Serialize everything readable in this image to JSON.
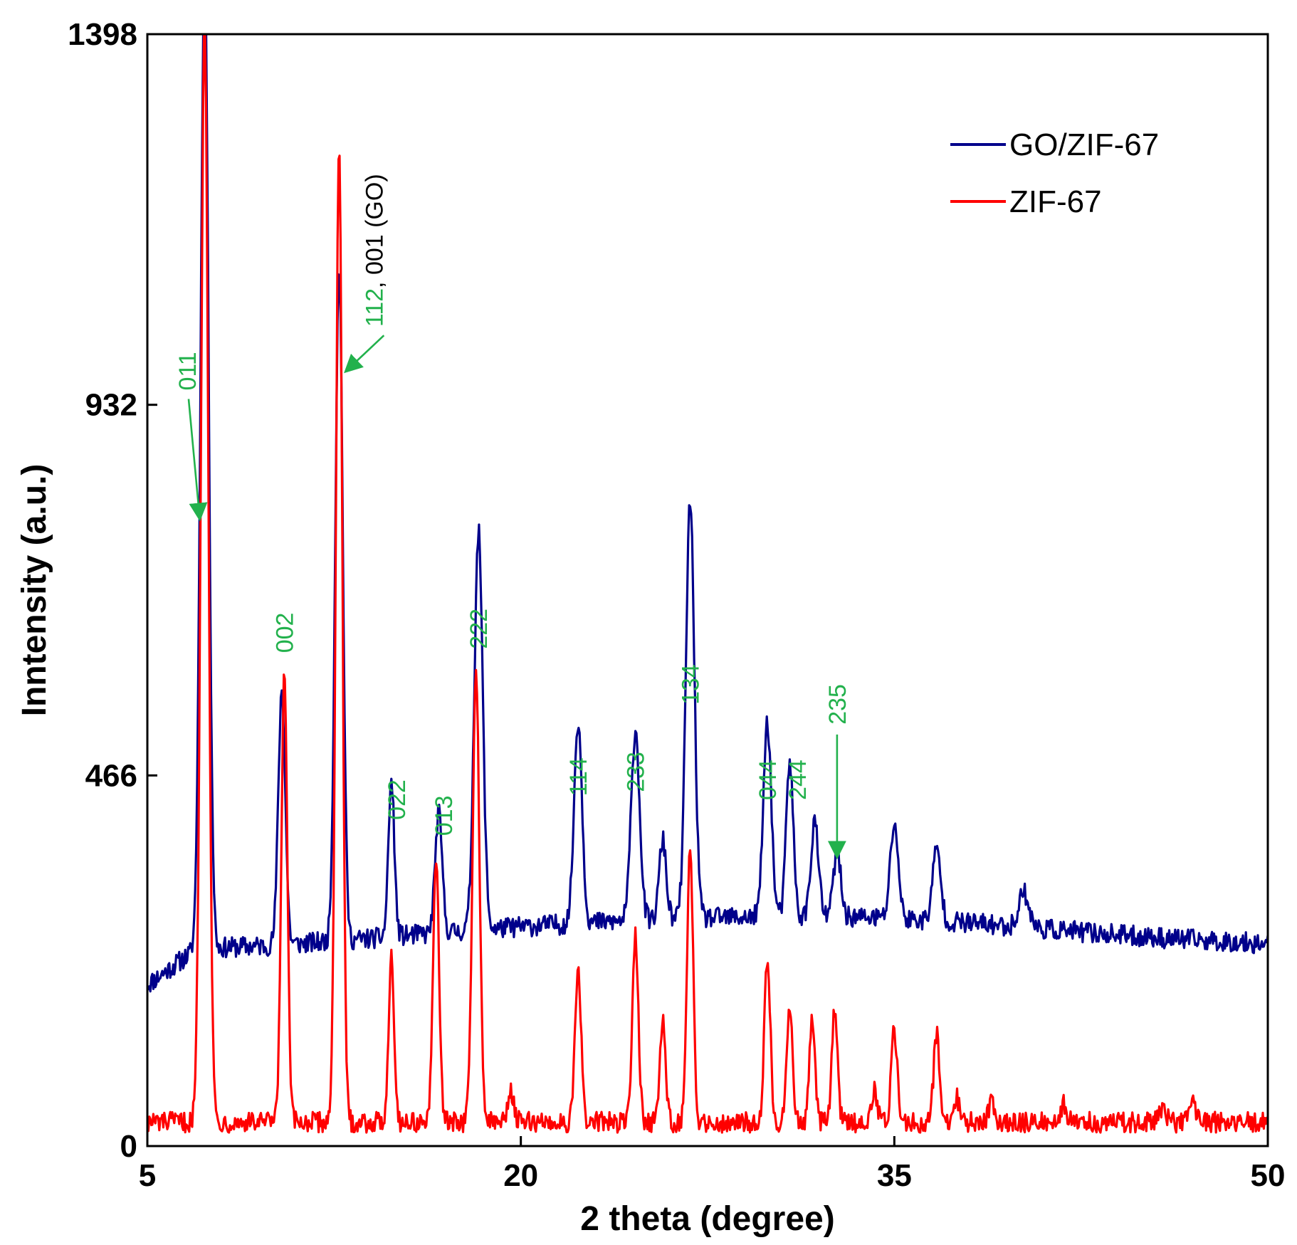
{
  "chart_data": {
    "type": "line",
    "xlabel": "2 theta (degree)",
    "ylabel": "Inntensity (a.u.)",
    "xlim": [
      5,
      50
    ],
    "ylim": [
      0,
      1398
    ],
    "xticks": [
      5,
      20,
      35,
      50
    ],
    "yticks": [
      0,
      466,
      932,
      1398
    ],
    "grid": false,
    "legend_position": "top-right",
    "annotation_color": "#22b14c",
    "series": [
      {
        "name": "GO/ZIF-67",
        "color": "#00008b",
        "baseline": 245,
        "peaks": [
          [
            7.3,
            1240,
            0.16
          ],
          [
            10.4,
            320,
            0.14
          ],
          [
            12.7,
            850,
            0.15
          ],
          [
            14.8,
            195,
            0.12
          ],
          [
            16.7,
            150,
            0.14
          ],
          [
            18.3,
            500,
            0.17
          ],
          [
            22.3,
            255,
            0.16
          ],
          [
            24.6,
            240,
            0.17
          ],
          [
            25.7,
            100,
            0.14
          ],
          [
            26.8,
            525,
            0.17
          ],
          [
            29.9,
            245,
            0.16
          ],
          [
            30.8,
            195,
            0.14
          ],
          [
            31.8,
            120,
            0.15
          ],
          [
            32.7,
            80,
            0.15
          ],
          [
            35.0,
            120,
            0.16
          ],
          [
            36.7,
            90,
            0.16
          ],
          [
            40.2,
            45,
            0.2
          ]
        ],
        "humps": [
          [
            21,
            25,
            7
          ],
          [
            33,
            30,
            7
          ],
          [
            42,
            12,
            9
          ]
        ]
      },
      {
        "name": "ZIF-67",
        "color": "#ff0000",
        "baseline": 30,
        "peaks": [
          [
            7.3,
            1390,
            0.15
          ],
          [
            10.5,
            560,
            0.12
          ],
          [
            12.7,
            1220,
            0.13
          ],
          [
            14.8,
            210,
            0.11
          ],
          [
            16.6,
            330,
            0.12
          ],
          [
            18.2,
            560,
            0.14
          ],
          [
            19.6,
            40,
            0.12
          ],
          [
            22.3,
            190,
            0.12
          ],
          [
            24.6,
            235,
            0.12
          ],
          [
            25.7,
            130,
            0.11
          ],
          [
            26.8,
            340,
            0.12
          ],
          [
            29.9,
            205,
            0.12
          ],
          [
            30.8,
            150,
            0.11
          ],
          [
            31.7,
            130,
            0.11
          ],
          [
            32.6,
            145,
            0.11
          ],
          [
            34.2,
            40,
            0.12
          ],
          [
            35.0,
            115,
            0.12
          ],
          [
            36.7,
            110,
            0.12
          ],
          [
            37.5,
            30,
            0.12
          ],
          [
            38.9,
            25,
            0.12
          ],
          [
            41.8,
            25,
            0.12
          ],
          [
            45.8,
            20,
            0.12
          ],
          [
            47.0,
            25,
            0.12
          ]
        ]
      }
    ],
    "annotations": [
      {
        "text": "011",
        "x": 6.6,
        "y": 950,
        "arrow_to": [
          7.1,
          790
        ]
      },
      {
        "text": "002",
        "x": 10.5,
        "y": 620
      },
      {
        "text": "112",
        "suffix": ", 001 (GO)",
        "x": 14.1,
        "y": 1030,
        "arrow_to": [
          13.0,
          975
        ]
      },
      {
        "text": "022",
        "x": 15.0,
        "y": 410
      },
      {
        "text": "013",
        "x": 16.9,
        "y": 390
      },
      {
        "text": "222",
        "x": 18.3,
        "y": 625
      },
      {
        "text": "114",
        "x": 22.3,
        "y": 440
      },
      {
        "text": "233",
        "x": 24.6,
        "y": 445
      },
      {
        "text": "134",
        "x": 26.8,
        "y": 555
      },
      {
        "text": "044",
        "x": 29.9,
        "y": 435
      },
      {
        "text": "244",
        "x": 31.1,
        "y": 435
      },
      {
        "text": "235",
        "x": 32.7,
        "y": 530,
        "arrow_to": [
          32.7,
          365
        ]
      }
    ]
  }
}
